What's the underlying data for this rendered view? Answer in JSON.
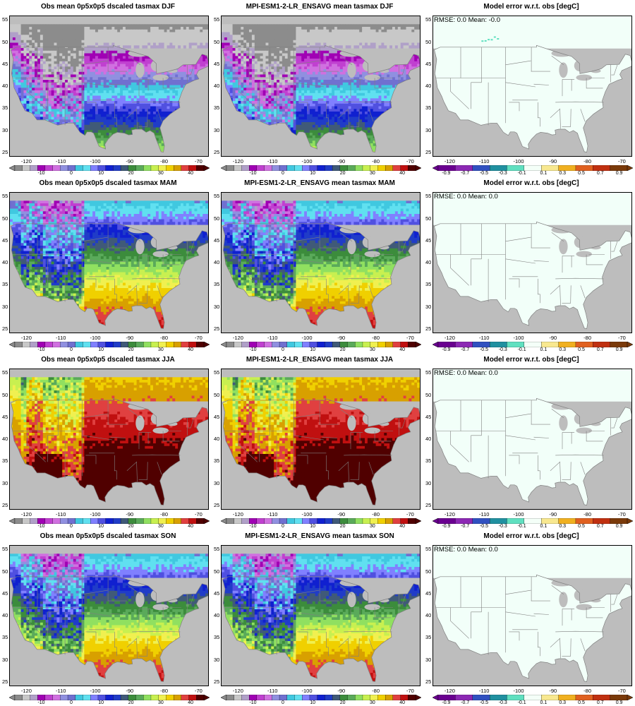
{
  "rows": [
    {
      "season": "DJF",
      "obs_title": "Obs mean 0p5x0p5 dscaled tasmax DJF",
      "model_title": "MPI-ESM1-2-LR_ENSAVG mean tasmax DJF",
      "err_title": "Model error w.r.t. obs [degC]",
      "stat": "RMSE: 0.0  Mean: -0.0"
    },
    {
      "season": "MAM",
      "obs_title": "Obs mean 0p5x0p5 dscaled tasmax MAM",
      "model_title": "MPI-ESM1-2-LR_ENSAVG mean tasmax MAM",
      "err_title": "Model error w.r.t. obs [degC]",
      "stat": "RMSE: 0.0  Mean: 0.0"
    },
    {
      "season": "JJA",
      "obs_title": "Obs mean 0p5x0p5 dscaled tasmax JJA",
      "model_title": "MPI-ESM1-2-LR_ENSAVG mean tasmax JJA",
      "err_title": "Model error w.r.t. obs [degC]",
      "stat": "RMSE: 0.0  Mean: 0.0"
    },
    {
      "season": "SON",
      "obs_title": "Obs mean 0p5x0p5 dscaled tasmax SON",
      "model_title": "MPI-ESM1-2-LR_ENSAVG mean tasmax SON",
      "err_title": "Model error w.r.t. obs [degC]",
      "stat": "RMSE: 0.0  Mean: 0.0"
    }
  ],
  "axes": {
    "lon_ticks": [
      "-120",
      "-110",
      "-100",
      "-90",
      "-80",
      "-70"
    ],
    "lat_ticks": [
      "55",
      "50",
      "45",
      "40",
      "35",
      "30",
      "25"
    ]
  },
  "temp_colorbar": {
    "labels": [
      "-10",
      "0",
      "10",
      "20",
      "30",
      "40"
    ],
    "colors": [
      "#8c8c8c",
      "#c8c8c8",
      "#b0a0c8",
      "#a000b4",
      "#c040d0",
      "#d070e0",
      "#9090e0",
      "#7070d0",
      "#40c8e0",
      "#60e0f0",
      "#8080ff",
      "#5050e0",
      "#1020d0",
      "#203cc8",
      "#405a78",
      "#3c8c3c",
      "#5aaa5a",
      "#90e060",
      "#c8f050",
      "#f0f050",
      "#f0d000",
      "#d8a000",
      "#e04040",
      "#c01010",
      "#500000"
    ]
  },
  "err_colorbar": {
    "labels": [
      "-0.9",
      "-0.7",
      "-0.5",
      "-0.3",
      "-0.1",
      "0.1",
      "0.3",
      "0.5",
      "0.7",
      "0.9"
    ],
    "colors": [
      "#6a0090",
      "#8c28b4",
      "#3050c0",
      "#2090a0",
      "#60e0c0",
      "#f4fff8",
      "#f8e890",
      "#f0b020",
      "#e06020",
      "#c03010",
      "#7a3a0a"
    ]
  },
  "colors": {
    "land_mask": "#bdbdbd",
    "state_lines": "#808080",
    "err_background": "#f2fff9"
  }
}
